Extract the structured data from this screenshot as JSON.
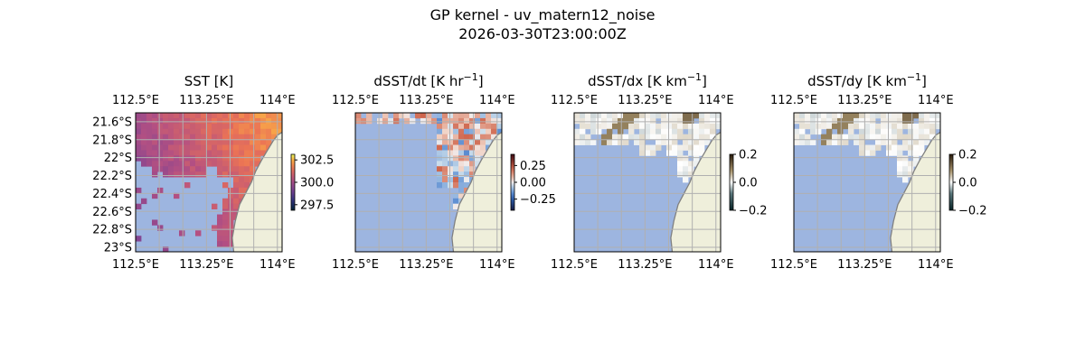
{
  "figure": {
    "title": "GP kernel - uv_matern12_noise",
    "subtitle": "2026-03-30T23:00:00Z"
  },
  "colors": {
    "land": "#efefdb",
    "coast": "#808080",
    "ocean_mask": "#9db5e0",
    "grid": "#b0b0b0"
  },
  "chart_data": [
    {
      "type": "heatmap",
      "title": "SST [K]",
      "title_sup": "",
      "title_end": "",
      "lon_ticks": [
        "112.5°E",
        "113.25°E",
        "114°E"
      ],
      "lat_ticks": [
        "21.6°S",
        "21.8°S",
        "22°S",
        "22.2°S",
        "22.4°S",
        "22.6°S",
        "22.8°S",
        "23°S"
      ],
      "lon_range": [
        112.5,
        114.05
      ],
      "lat_range": [
        -23.05,
        -21.5
      ],
      "colorbar": {
        "ticks": [
          "302.5",
          "300.0",
          "297.5"
        ],
        "range": [
          297.0,
          303.0
        ]
      },
      "colormap": "thermal",
      "field": "sst"
    },
    {
      "type": "heatmap",
      "title": "dSST/dt [K hr",
      "title_sup": "−1",
      "title_end": "]",
      "lon_ticks": [
        "112.5°E",
        "113.25°E",
        "114°E"
      ],
      "lat_ticks": [],
      "lon_range": [
        112.5,
        114.05
      ],
      "lat_range": [
        -23.05,
        -21.5
      ],
      "colorbar": {
        "ticks": [
          "0.25",
          "0.00",
          "−0.25"
        ],
        "range": [
          -0.4,
          0.4
        ]
      },
      "colormap": "balance",
      "field": "dt"
    },
    {
      "type": "heatmap",
      "title": "dSST/dx [K km",
      "title_sup": "−1",
      "title_end": "]",
      "lon_ticks": [
        "112.5°E",
        "113.25°E",
        "114°E"
      ],
      "lat_ticks": [],
      "lon_range": [
        112.5,
        114.05
      ],
      "lat_range": [
        -23.05,
        -21.5
      ],
      "colorbar": {
        "ticks": [
          "0.2",
          "0.0",
          "−0.2"
        ],
        "range": [
          -0.2,
          0.2
        ]
      },
      "colormap": "diff",
      "field": "dx"
    },
    {
      "type": "heatmap",
      "title": "dSST/dy [K km",
      "title_sup": "−1",
      "title_end": "]",
      "lon_ticks": [
        "112.5°E",
        "113.25°E",
        "114°E"
      ],
      "lat_ticks": [],
      "lon_range": [
        112.5,
        114.05
      ],
      "lat_range": [
        -23.05,
        -21.5
      ],
      "colorbar": {
        "ticks": [
          "0.2",
          "0.0",
          "−0.2"
        ],
        "range": [
          -0.2,
          0.2
        ]
      },
      "colormap": "diff",
      "field": "dy"
    }
  ]
}
